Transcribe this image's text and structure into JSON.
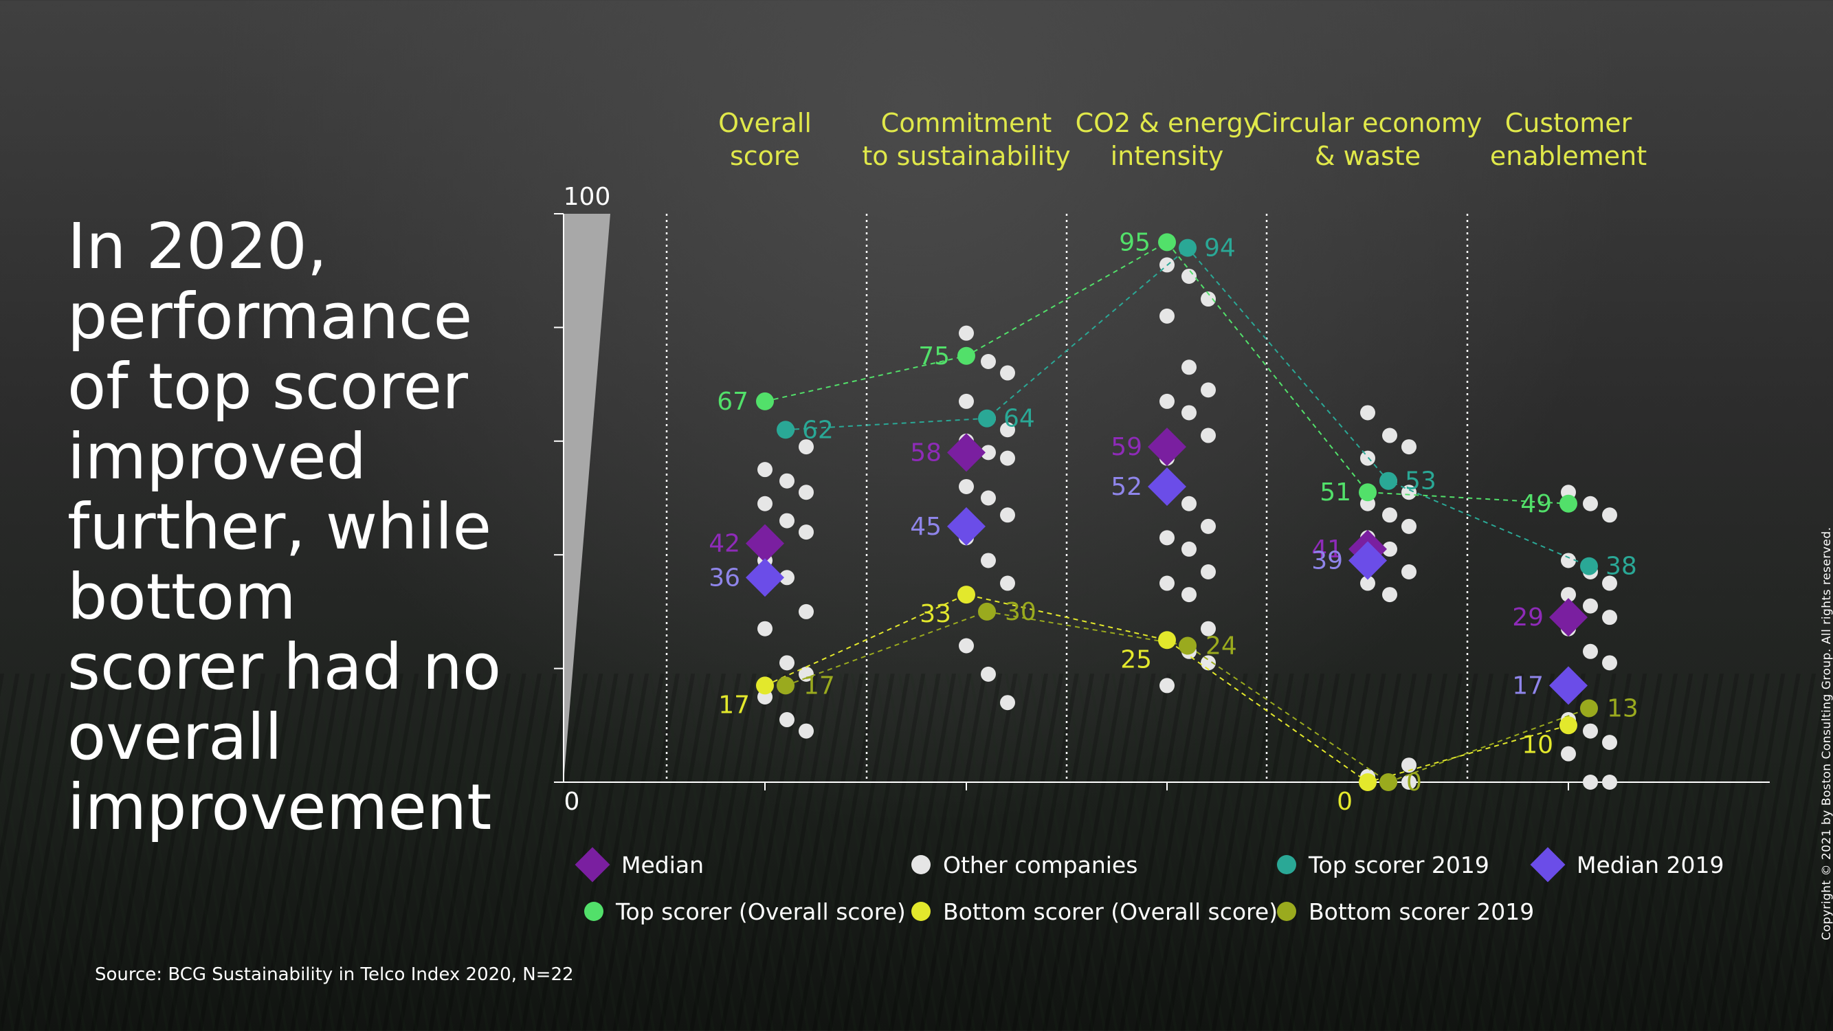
{
  "headline": "In 2020, performance of top scorer improved further, while bottom scorer had no overall improvement",
  "source": "Source: BCG Sustainability in Telco Index 2020, N=22",
  "copyright": "Copyright © 2021 by Boston Consulting Group. All rights reserved.",
  "colors": {
    "median": "#7a1fa0",
    "median_label": "#8e2bb8",
    "median_2019": "#6b4de8",
    "median_2019_label": "#8f85ea",
    "other": "#e6e6e6",
    "top": "#52e06a",
    "top_2019": "#2aa896",
    "bottom": "#e3e82c",
    "bottom_2019": "#9aaa1e",
    "header": "#e0e84a",
    "axis": "#ffffff"
  },
  "chart_data": {
    "type": "scatter",
    "categories": [
      "Overall\nscore",
      "Commitment\nto sustainability",
      "CO2 & energy\nintensity",
      "Circular economy\n& waste",
      "Customer\nenablement"
    ],
    "ylim": [
      0,
      100
    ],
    "yticks_labeled": [
      "0",
      "100"
    ],
    "grid": false,
    "series": [
      {
        "name": "Median",
        "key": "median",
        "values": [
          42,
          58,
          59,
          41,
          29
        ]
      },
      {
        "name": "Median 2019",
        "key": "median_2019",
        "values": [
          36,
          45,
          52,
          39,
          17
        ]
      },
      {
        "name": "Top scorer (Overall score)",
        "key": "top",
        "values": [
          67,
          75,
          95,
          51,
          49
        ]
      },
      {
        "name": "Top scorer 2019",
        "key": "top_2019",
        "values": [
          62,
          64,
          94,
          53,
          38
        ]
      },
      {
        "name": "Bottom scorer (Overall score)",
        "key": "bottom",
        "values": [
          17,
          33,
          25,
          0,
          10
        ]
      },
      {
        "name": "Bottom scorer 2019",
        "key": "bottom_2019",
        "values": [
          17,
          30,
          24,
          0,
          13
        ]
      },
      {
        "name": "Other companies",
        "key": "other",
        "points": [
          [
            [
              64,
              70
            ],
            [
              60,
              64
            ],
            [
              58,
              60
            ],
            [
              56,
              54
            ],
            [
              54,
              52
            ],
            [
              52,
              50
            ],
            [
              50,
              48
            ],
            [
              46,
              46
            ],
            [
              44,
              44
            ],
            [
              40,
              38
            ],
            [
              38,
              34
            ],
            [
              30,
              30
            ],
            [
              28,
              26
            ],
            [
              22,
              20
            ],
            [
              20,
              18
            ],
            [
              16,
              14
            ],
            [
              12,
              10
            ],
            [
              10,
              8
            ]
          ],
          [
            [
              78,
              80
            ],
            [
              74,
              74
            ],
            [
              72,
              72
            ],
            [
              68,
              66
            ],
            [
              66,
              62
            ],
            [
              64,
              60
            ],
            [
              62,
              58
            ],
            [
              60,
              56
            ],
            [
              58,
              56
            ],
            [
              54,
              50
            ],
            [
              52,
              48
            ],
            [
              48,
              46
            ],
            [
              44,
              42
            ],
            [
              40,
              38
            ],
            [
              36,
              34
            ],
            [
              26,
              22
            ],
            [
              20,
              18
            ],
            [
              16,
              12
            ]
          ],
          [
            [
              92,
              90
            ],
            [
              90,
              88
            ],
            [
              86,
              84
            ],
            [
              84,
              80
            ],
            [
              74,
              72
            ],
            [
              70,
              68
            ],
            [
              68,
              66
            ],
            [
              66,
              64
            ],
            [
              62,
              60
            ],
            [
              58,
              56
            ],
            [
              50,
              48
            ],
            [
              46,
              44
            ],
            [
              44,
              42
            ],
            [
              42,
              40
            ],
            [
              38,
              36
            ],
            [
              36,
              34
            ],
            [
              34,
              32
            ],
            [
              28,
              26
            ],
            [
              26,
              24
            ],
            [
              24,
              22
            ],
            [
              22,
              20
            ],
            [
              18,
              16
            ]
          ],
          [
            [
              66,
              64
            ],
            [
              62,
              60
            ],
            [
              60,
              58
            ],
            [
              58,
              56
            ],
            [
              54,
              52
            ],
            [
              52,
              50
            ],
            [
              50,
              48
            ],
            [
              48,
              46
            ],
            [
              46,
              44
            ],
            [
              44,
              42
            ],
            [
              42,
              40
            ],
            [
              38,
              36
            ],
            [
              36,
              34
            ],
            [
              34,
              32
            ],
            [
              4,
              2
            ],
            [
              2,
              0
            ],
            [
              0,
              0
            ],
            [
              0,
              0
            ]
          ],
          [
            [
              52,
              50
            ],
            [
              50,
              48
            ],
            [
              48,
              46
            ],
            [
              40,
              38
            ],
            [
              38,
              36
            ],
            [
              36,
              34
            ],
            [
              34,
              32
            ],
            [
              32,
              30
            ],
            [
              30,
              28
            ],
            [
              28,
              26
            ],
            [
              24,
              22
            ],
            [
              22,
              20
            ],
            [
              12,
              10
            ],
            [
              10,
              8
            ],
            [
              8,
              6
            ],
            [
              6,
              4
            ],
            [
              0,
              0
            ],
            [
              0,
              0
            ]
          ]
        ]
      }
    ],
    "data_labels": {
      "median": [
        "42",
        "58",
        "59",
        "41",
        "29"
      ],
      "median_2019": [
        "36",
        "45",
        "52",
        "39",
        "17"
      ],
      "top": [
        "67",
        "75",
        "95",
        "51",
        "49"
      ],
      "top_2019": [
        "62",
        "64",
        "94",
        "53",
        "38"
      ],
      "bottom": [
        "17",
        "33",
        "25",
        "0",
        "10"
      ],
      "bottom_2019": [
        "17",
        "30",
        "24",
        "0",
        "13"
      ]
    },
    "legend_placement": "bottom"
  },
  "legend": {
    "median": "Median",
    "other": "Other companies",
    "top_2019": "Top scorer 2019",
    "median_2019": "Median 2019",
    "top": "Top scorer (Overall score)",
    "bottom": "Bottom scorer (Overall score)",
    "bottom_2019": "Bottom scorer 2019"
  }
}
